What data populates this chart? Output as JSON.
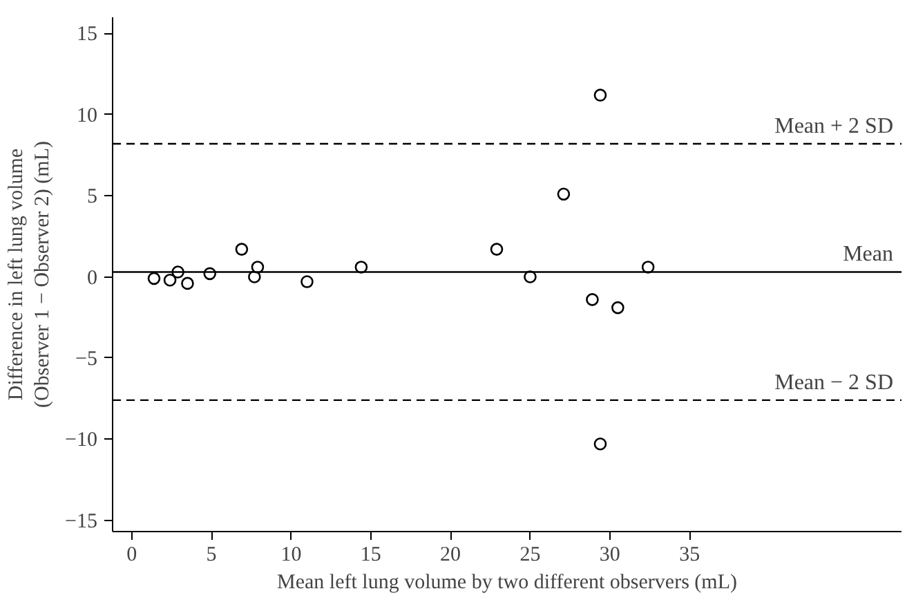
{
  "chart_data": {
    "type": "scatter",
    "xlabel": "Mean left lung volume by two different observers (mL)",
    "ylabel": "Difference in left lung volume\n(Observer 1 − Observer 2) (mL)",
    "x": [
      1.4,
      2.4,
      2.9,
      3.5,
      4.9,
      6.9,
      7.7,
      7.9,
      11.0,
      14.4,
      22.9,
      25.0,
      27.1,
      28.9,
      29.4,
      29.4,
      30.5,
      32.4
    ],
    "series": [
      {
        "color": "#000000",
        "values": [
          -0.1,
          -0.2,
          0.3,
          -0.4,
          0.2,
          1.7,
          0.0,
          0.6,
          -0.3,
          0.6,
          1.7,
          0.0,
          5.1,
          -1.4,
          11.2,
          -10.3,
          -1.9,
          0.6
        ]
      }
    ],
    "marker": "circle",
    "xlim": [
      -1.2,
      48.3
    ],
    "ylim": [
      -15.7,
      16
    ],
    "xticks": [
      0,
      5,
      10,
      15,
      20,
      25,
      30,
      35
    ],
    "yticks": [
      {
        "value": -15,
        "label": "−15"
      },
      {
        "value": -10,
        "label": "−10"
      },
      {
        "value": -5,
        "label": "−5"
      },
      0,
      5,
      10,
      15
    ],
    "ref_lines": [
      {
        "axis": "y",
        "value": 8.2,
        "label": "Mean + 2 SD",
        "line_style": "dashed"
      },
      {
        "axis": "y",
        "value": 0.3,
        "label": "Mean",
        "line_style": "solid"
      },
      {
        "axis": "y",
        "value": -7.6,
        "label": "Mean − 2 SD",
        "line_style": "dashed"
      }
    ],
    "grid": false
  }
}
